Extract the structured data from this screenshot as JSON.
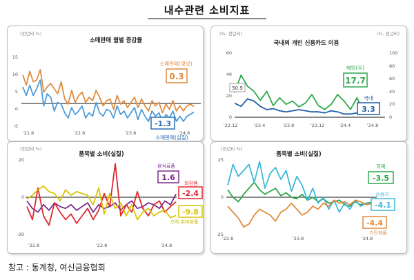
{
  "page_title": "내수관련 소비지표",
  "footnote": "참고 : 통계청, 여신금융협회",
  "chart_data": [
    {
      "type": "line",
      "title": "소매판매 월별 증감률",
      "unit_label": "(전년비 %)",
      "ylim": [
        -5,
        15
      ],
      "y_ticks": [
        "15",
        "10",
        "5",
        "0",
        "-5"
      ],
      "x_tick_labels": [
        "'21.8",
        "'22.8",
        "'23.8",
        "'24.8"
      ],
      "series": [
        {
          "name": "소매판매(경상)",
          "color": "#e08a3c",
          "values": [
            9.5,
            6.5,
            10.5,
            7.5,
            8.0,
            11.0,
            4.5,
            6.0,
            7.0,
            5.5,
            4.0,
            7.5,
            2.5,
            1.0,
            5.0,
            1.5,
            3.5,
            4.5,
            1.5,
            3.0,
            2.0,
            5.0,
            3.0,
            0.5,
            2.0,
            2.5,
            -0.5,
            3.5,
            1.0,
            2.0,
            0.0,
            1.5,
            3.0,
            0.0,
            2.5,
            0.5,
            -1.0,
            2.0,
            0.5,
            1.5,
            -1.5,
            1.0,
            -0.5,
            2.0,
            -1.0,
            0.5,
            -1.0,
            0.5,
            1.0,
            0.3
          ]
        },
        {
          "name": "소매판매(실질)",
          "color": "#4e9bd8",
          "values": [
            6.0,
            3.5,
            6.5,
            3.5,
            5.5,
            8.0,
            0.5,
            4.0,
            3.0,
            -1.0,
            1.5,
            1.0,
            -1.5,
            -3.0,
            0.0,
            -2.0,
            -1.0,
            0.5,
            -3.0,
            -1.5,
            -2.5,
            1.5,
            -1.5,
            -2.5,
            -0.5,
            -1.0,
            -3.0,
            0.5,
            -2.0,
            -1.0,
            -3.0,
            -1.5,
            0.0,
            -3.5,
            -0.5,
            -2.5,
            -4.0,
            -1.0,
            -2.5,
            -1.5,
            -4.0,
            -2.0,
            -3.0,
            -1.0,
            -4.0,
            -2.5,
            -4.0,
            -2.5,
            -2.0,
            -1.3
          ]
        }
      ],
      "callouts": [
        {
          "series": "소매판매(경상)",
          "value": "0.3",
          "label": "소매판매(경상)"
        },
        {
          "series": "소매판매(실질)",
          "value": "-1.3",
          "label": "소매판매(실질)"
        }
      ]
    },
    {
      "type": "line",
      "title": "국내외 개인 신용카드 이용",
      "unit_label_left": "(%, 전년비)",
      "unit_label_right": "(%, 전년비)",
      "ylim_left": [
        0,
        60
      ],
      "ylim_right": [
        0,
        100
      ],
      "y_ticks_left": [
        "60",
        "40",
        "20",
        "0"
      ],
      "y_ticks_right": [
        "100",
        "80",
        "60",
        "40",
        "20",
        "0"
      ],
      "x_tick_labels": [
        "'22.12",
        "'23.4",
        "'23.8",
        "'23.12",
        "'24.4",
        "'24.8"
      ],
      "annotation": "50.9",
      "series": [
        {
          "name": "국내",
          "axis": "left",
          "color": "#1f5fa8",
          "values": [
            13,
            10,
            17,
            15,
            10,
            7,
            8,
            6,
            5,
            6,
            7,
            6,
            5,
            5,
            4,
            6,
            5,
            3,
            3,
            4,
            3,
            3.3
          ]
        },
        {
          "name": "해외(우)",
          "axis": "right",
          "color": "#2aa84a",
          "values": [
            38,
            65,
            48,
            40,
            26,
            40,
            18,
            30,
            20,
            25,
            16,
            22,
            35,
            18,
            12,
            20,
            35,
            25,
            12,
            30,
            10,
            17.7
          ]
        }
      ],
      "callouts": [
        {
          "series": "해외(우)",
          "value": "17.7",
          "label": "해외(우)"
        },
        {
          "series": "국내",
          "value": "3.3",
          "label": "국내"
        }
      ]
    },
    {
      "type": "line",
      "title": "품목별 소비(실질)",
      "unit_label": "(전년비 %)",
      "ylim": [
        -20,
        20
      ],
      "y_ticks": [
        "20",
        "0",
        "-20"
      ],
      "x_tick_labels": [
        "'22.8",
        "'23.8",
        "'24.8"
      ],
      "series": [
        {
          "name": "음식료품",
          "color": "#7b2a8c",
          "values": [
            -2,
            -6,
            -8,
            -4,
            -7,
            -3,
            -5,
            -6,
            -4,
            -7,
            -5,
            -3,
            -8,
            -4,
            -6,
            -5,
            -3,
            -7,
            -4,
            -2,
            -6,
            -5,
            -3,
            -4,
            -6,
            -2,
            -4,
            1.6
          ]
        },
        {
          "name": "화장품",
          "color": "#e0262b",
          "values": [
            -5,
            -12,
            5,
            -10,
            -15,
            -3,
            -8,
            -12,
            -9,
            -14,
            -10,
            -6,
            -12,
            -7,
            2,
            -5,
            18,
            -10,
            -4,
            -8,
            3,
            -6,
            -10,
            -4,
            -2,
            -8,
            -5,
            -2.4
          ]
        },
        {
          "name": "오락,취미용품",
          "color": "#d9c400",
          "values": [
            -1,
            1,
            4,
            6,
            3,
            2,
            -2,
            4,
            1,
            3,
            2,
            1,
            -4,
            5,
            -9,
            2,
            -6,
            -3,
            -10,
            -4,
            -12,
            -8,
            -6,
            -10,
            -8,
            -7,
            -11,
            -9.8
          ]
        }
      ],
      "callouts": [
        {
          "series": "음식료품",
          "value": "1.6",
          "label": "음식료품"
        },
        {
          "series": "화장품",
          "value": "-2.4",
          "label": "화장품"
        },
        {
          "series": "오락,취미용품",
          "value": "-9.8",
          "label": "오락,취미용품"
        }
      ]
    },
    {
      "type": "line",
      "title": "품목별 소비(실질)",
      "unit_label": "(전년비 %)",
      "ylim": [
        -25,
        25
      ],
      "y_ticks": [
        "25",
        "0",
        "-25"
      ],
      "x_tick_labels": [
        "'22.8",
        "'23.8",
        "'24.8"
      ],
      "series": [
        {
          "name": "의복",
          "color": "#2aa84a",
          "values": [
            5,
            0,
            -3,
            2,
            6,
            10,
            5,
            2,
            4,
            6,
            1,
            3,
            0,
            -1,
            2,
            -2,
            0,
            -3,
            -1,
            -4,
            -3,
            -2,
            -5,
            -6,
            -3,
            -5,
            -4,
            -3.5
          ]
        },
        {
          "name": "승용차",
          "color": "#3bb8d8",
          "values": [
            8,
            22,
            14,
            18,
            22,
            10,
            24,
            6,
            16,
            20,
            12,
            18,
            4,
            14,
            8,
            -2,
            6,
            -4,
            0,
            -8,
            -2,
            -10,
            -4,
            -8,
            -2,
            -6,
            -4,
            -4.1
          ]
        },
        {
          "name": "가전제품",
          "color": "#e08a3c",
          "values": [
            -6,
            -10,
            -14,
            -20,
            -18,
            -12,
            -8,
            -10,
            -12,
            -16,
            -10,
            -8,
            -4,
            -8,
            -12,
            -10,
            -6,
            -8,
            -4,
            -6,
            -2,
            -4,
            -3,
            -5,
            -2,
            -3,
            -5,
            -4.4
          ]
        }
      ],
      "callouts": [
        {
          "series": "의복",
          "value": "-3.5",
          "label": "의복"
        },
        {
          "series": "승용차",
          "value": "-4.1",
          "label": "승용차"
        },
        {
          "series": "가전제품",
          "value": "-4.4",
          "label": "가전제품"
        }
      ]
    }
  ]
}
